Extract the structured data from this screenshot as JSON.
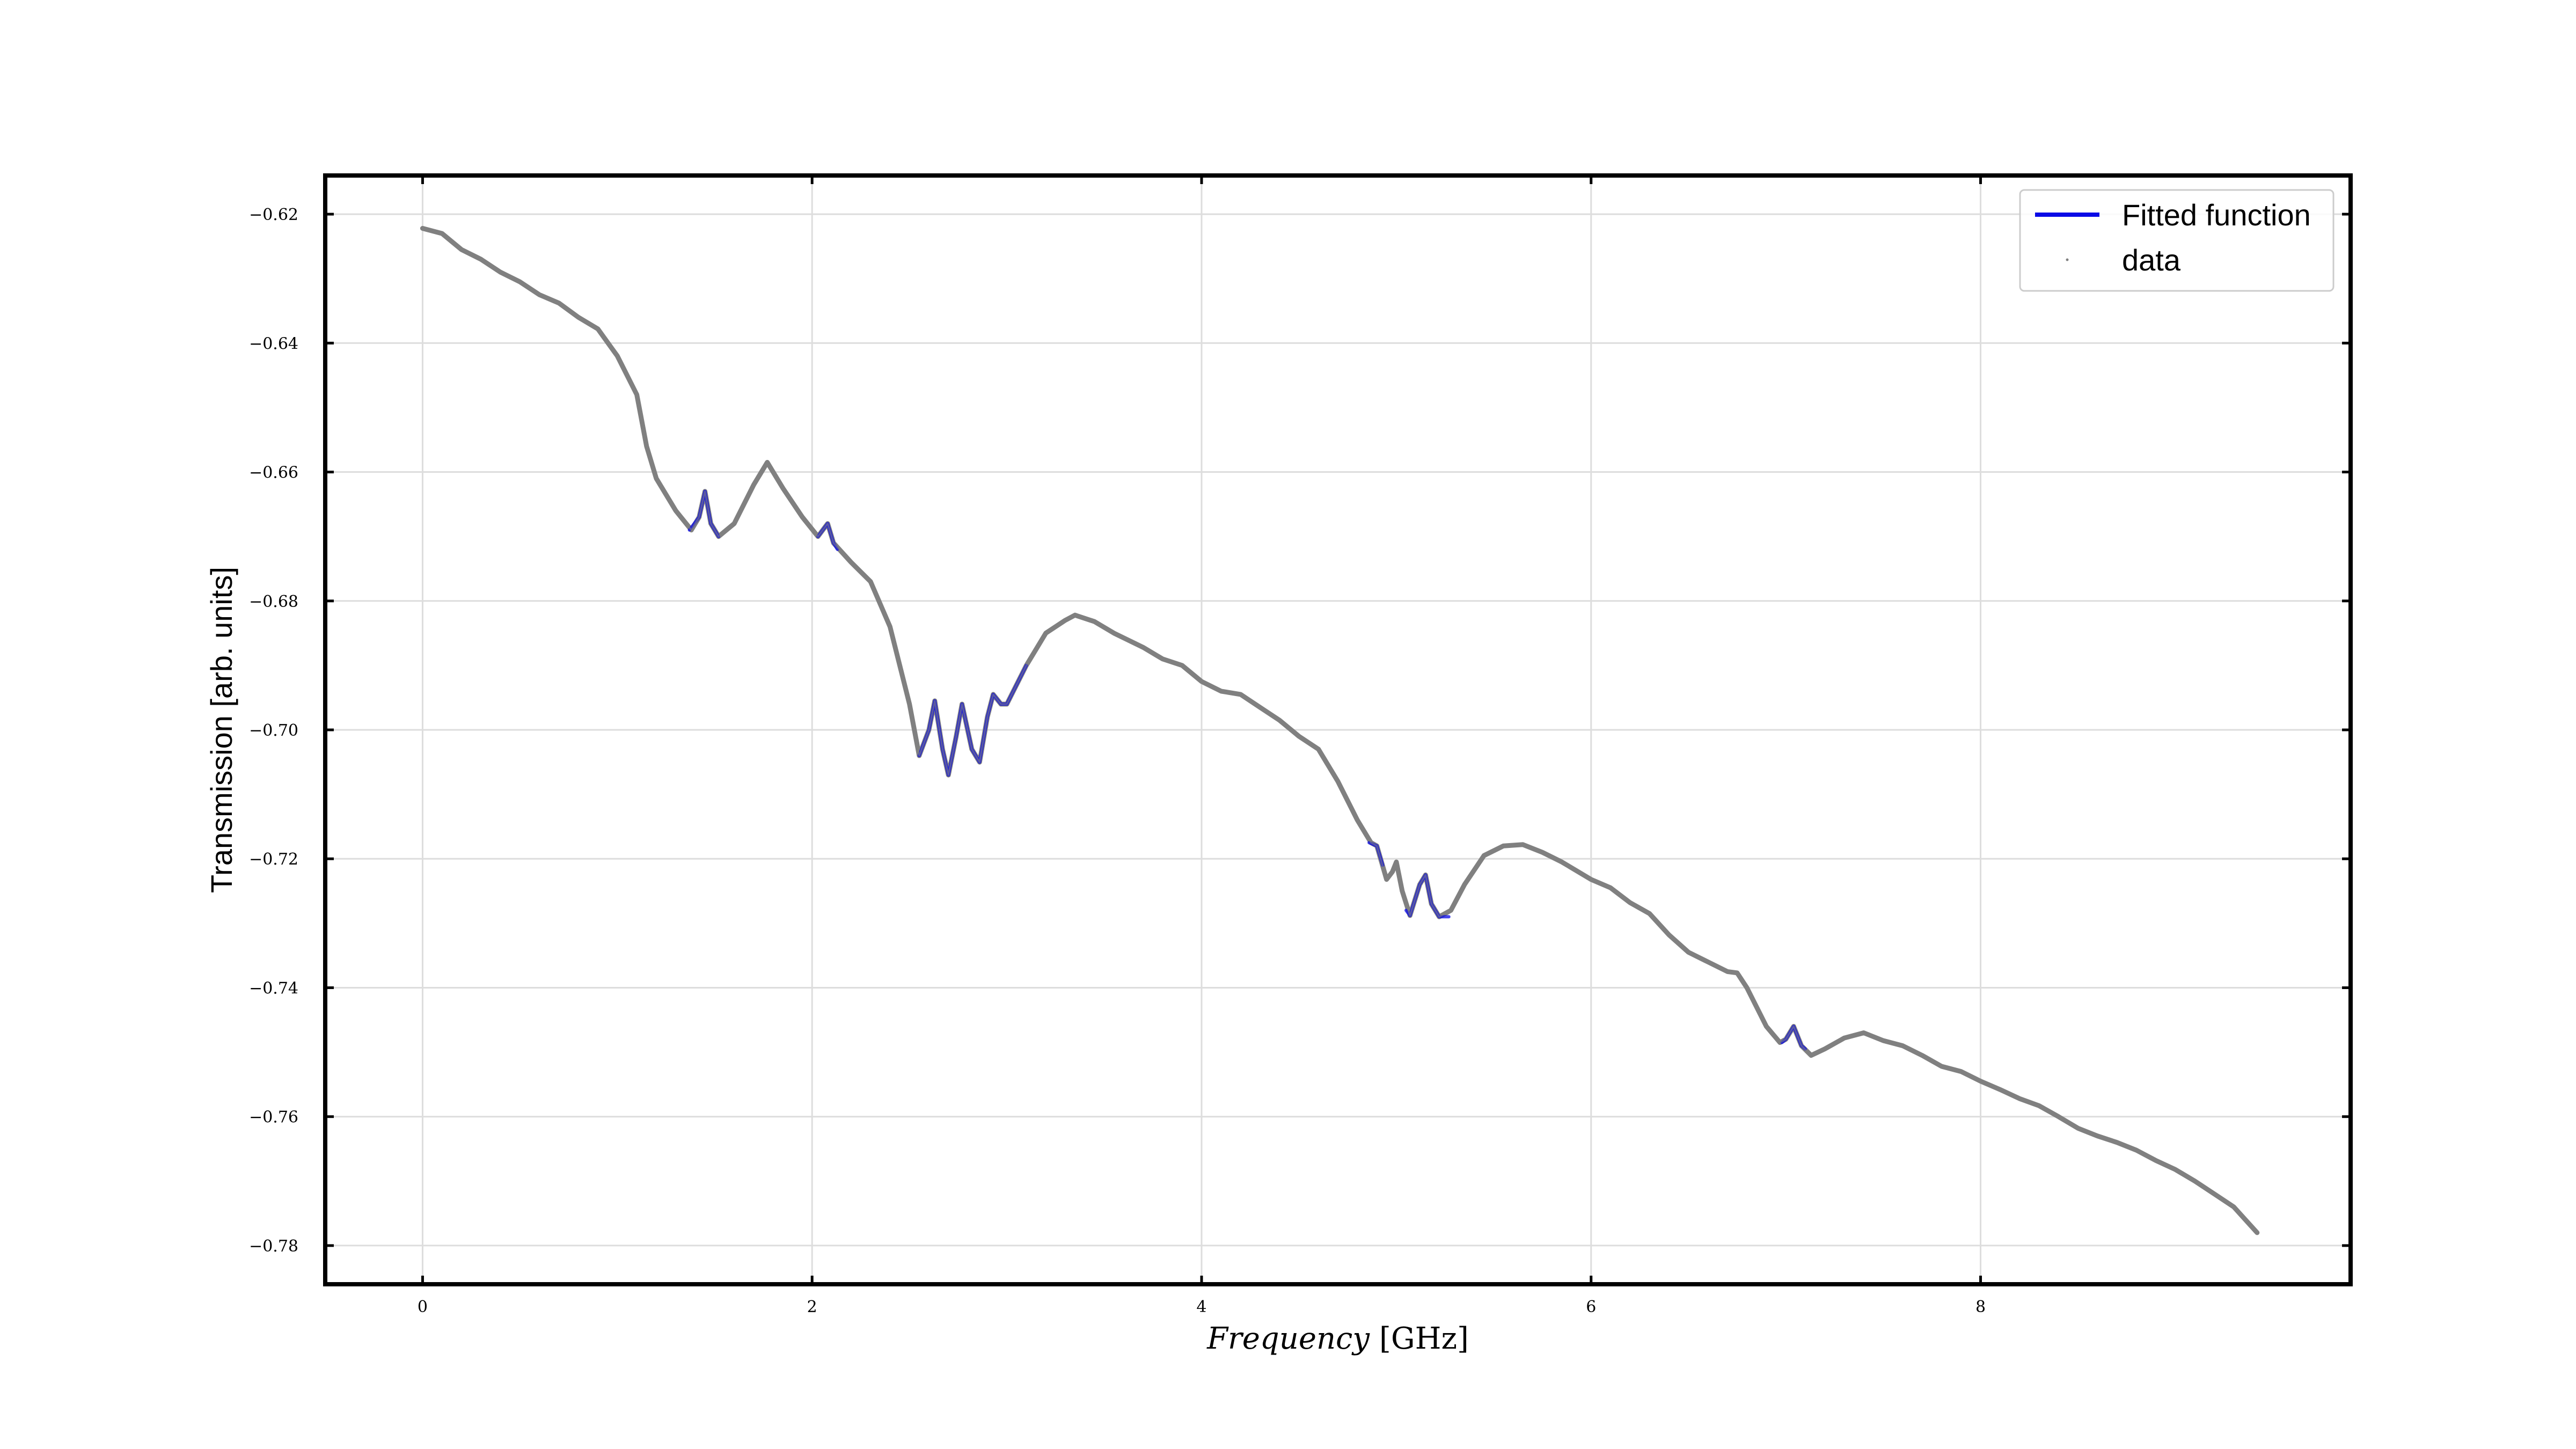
{
  "chart_data": {
    "type": "line",
    "xlabel_italic": "Frequency",
    "xlabel_unit": "[GHz]",
    "ylabel": "Transmission [arb. units]",
    "xlim": [
      -0.5,
      9.9
    ],
    "ylim": [
      -0.786,
      -0.614
    ],
    "xticks": [
      0,
      2,
      4,
      6,
      8
    ],
    "xtick_labels": [
      "0",
      "2",
      "4",
      "6",
      "8"
    ],
    "yticks": [
      -0.62,
      -0.64,
      -0.66,
      -0.68,
      -0.7,
      -0.72,
      -0.74,
      -0.76,
      -0.78
    ],
    "ytick_labels": [
      "−0.62",
      "−0.64",
      "−0.66",
      "−0.68",
      "−0.70",
      "−0.72",
      "−0.74",
      "−0.76",
      "−0.78"
    ],
    "grid": true,
    "legend_position": "top-right",
    "legend": [
      {
        "label": "Fitted function",
        "marker": "line",
        "color": "#0a0ae6"
      },
      {
        "label": "data",
        "marker": "dot",
        "color": "#808080"
      }
    ],
    "series": [
      {
        "name": "data",
        "color": "#808080",
        "points": [
          [
            0.0,
            -0.6222
          ],
          [
            0.1,
            -0.623
          ],
          [
            0.2,
            -0.6255
          ],
          [
            0.3,
            -0.627
          ],
          [
            0.4,
            -0.629
          ],
          [
            0.5,
            -0.6305
          ],
          [
            0.6,
            -0.6325
          ],
          [
            0.7,
            -0.6338
          ],
          [
            0.8,
            -0.636
          ],
          [
            0.9,
            -0.6378
          ],
          [
            1.0,
            -0.642
          ],
          [
            1.1,
            -0.648
          ],
          [
            1.15,
            -0.656
          ],
          [
            1.2,
            -0.661
          ],
          [
            1.3,
            -0.666
          ],
          [
            1.38,
            -0.669
          ],
          [
            1.42,
            -0.667
          ],
          [
            1.45,
            -0.663
          ],
          [
            1.48,
            -0.668
          ],
          [
            1.52,
            -0.67
          ],
          [
            1.6,
            -0.668
          ],
          [
            1.7,
            -0.662
          ],
          [
            1.77,
            -0.6585
          ],
          [
            1.85,
            -0.6625
          ],
          [
            1.95,
            -0.667
          ],
          [
            2.03,
            -0.67
          ],
          [
            2.08,
            -0.668
          ],
          [
            2.11,
            -0.671
          ],
          [
            2.2,
            -0.674
          ],
          [
            2.3,
            -0.677
          ],
          [
            2.4,
            -0.684
          ],
          [
            2.5,
            -0.696
          ],
          [
            2.55,
            -0.704
          ],
          [
            2.6,
            -0.7
          ],
          [
            2.63,
            -0.6955
          ],
          [
            2.67,
            -0.703
          ],
          [
            2.7,
            -0.707
          ],
          [
            2.74,
            -0.701
          ],
          [
            2.77,
            -0.696
          ],
          [
            2.82,
            -0.703
          ],
          [
            2.86,
            -0.705
          ],
          [
            2.9,
            -0.698
          ],
          [
            2.93,
            -0.6945
          ],
          [
            2.97,
            -0.696
          ],
          [
            3.0,
            -0.696
          ],
          [
            3.1,
            -0.69
          ],
          [
            3.2,
            -0.685
          ],
          [
            3.3,
            -0.683
          ],
          [
            3.35,
            -0.6822
          ],
          [
            3.45,
            -0.6832
          ],
          [
            3.55,
            -0.685
          ],
          [
            3.7,
            -0.6872
          ],
          [
            3.8,
            -0.689
          ],
          [
            3.9,
            -0.69
          ],
          [
            4.0,
            -0.6925
          ],
          [
            4.1,
            -0.694
          ],
          [
            4.2,
            -0.6945
          ],
          [
            4.3,
            -0.6965
          ],
          [
            4.4,
            -0.6985
          ],
          [
            4.5,
            -0.701
          ],
          [
            4.6,
            -0.703
          ],
          [
            4.7,
            -0.708
          ],
          [
            4.8,
            -0.714
          ],
          [
            4.87,
            -0.7175
          ],
          [
            4.9,
            -0.718
          ],
          [
            4.95,
            -0.7232
          ],
          [
            4.98,
            -0.722
          ],
          [
            5.0,
            -0.7205
          ],
          [
            5.03,
            -0.725
          ],
          [
            5.07,
            -0.7288
          ],
          [
            5.12,
            -0.724
          ],
          [
            5.15,
            -0.7225
          ],
          [
            5.18,
            -0.727
          ],
          [
            5.22,
            -0.729
          ],
          [
            5.28,
            -0.728
          ],
          [
            5.35,
            -0.724
          ],
          [
            5.45,
            -0.7195
          ],
          [
            5.55,
            -0.718
          ],
          [
            5.65,
            -0.7178
          ],
          [
            5.75,
            -0.719
          ],
          [
            5.85,
            -0.7205
          ],
          [
            6.0,
            -0.7232
          ],
          [
            6.1,
            -0.7245
          ],
          [
            6.2,
            -0.7268
          ],
          [
            6.3,
            -0.7285
          ],
          [
            6.4,
            -0.7318
          ],
          [
            6.5,
            -0.7345
          ],
          [
            6.6,
            -0.736
          ],
          [
            6.7,
            -0.7375
          ],
          [
            6.75,
            -0.7377
          ],
          [
            6.8,
            -0.74
          ],
          [
            6.9,
            -0.746
          ],
          [
            6.97,
            -0.7485
          ],
          [
            7.0,
            -0.748
          ],
          [
            7.04,
            -0.746
          ],
          [
            7.08,
            -0.749
          ],
          [
            7.13,
            -0.7505
          ],
          [
            7.2,
            -0.7495
          ],
          [
            7.3,
            -0.7478
          ],
          [
            7.4,
            -0.747
          ],
          [
            7.5,
            -0.7482
          ],
          [
            7.6,
            -0.749
          ],
          [
            7.7,
            -0.7505
          ],
          [
            7.8,
            -0.7522
          ],
          [
            7.9,
            -0.753
          ],
          [
            8.0,
            -0.7545
          ],
          [
            8.1,
            -0.7558
          ],
          [
            8.2,
            -0.7572
          ],
          [
            8.3,
            -0.7583
          ],
          [
            8.4,
            -0.76
          ],
          [
            8.5,
            -0.7618
          ],
          [
            8.6,
            -0.763
          ],
          [
            8.7,
            -0.764
          ],
          [
            8.8,
            -0.7652
          ],
          [
            8.9,
            -0.7668
          ],
          [
            9.0,
            -0.7682
          ],
          [
            9.1,
            -0.77
          ],
          [
            9.2,
            -0.772
          ],
          [
            9.3,
            -0.774
          ],
          [
            9.42,
            -0.778
          ]
        ]
      },
      {
        "name": "Fitted function",
        "color": "#0a0ae6",
        "segments": [
          [
            [
              1.37,
              -0.669
            ],
            [
              1.42,
              -0.667
            ],
            [
              1.45,
              -0.663
            ],
            [
              1.48,
              -0.668
            ],
            [
              1.52,
              -0.67
            ]
          ],
          [
            [
              2.03,
              -0.67
            ],
            [
              2.08,
              -0.668
            ],
            [
              2.11,
              -0.671
            ],
            [
              2.13,
              -0.672
            ]
          ],
          [
            [
              2.55,
              -0.704
            ],
            [
              2.6,
              -0.7
            ],
            [
              2.63,
              -0.6955
            ],
            [
              2.67,
              -0.703
            ],
            [
              2.7,
              -0.707
            ],
            [
              2.74,
              -0.701
            ],
            [
              2.77,
              -0.696
            ],
            [
              2.82,
              -0.703
            ],
            [
              2.86,
              -0.705
            ],
            [
              2.9,
              -0.698
            ],
            [
              2.93,
              -0.6945
            ],
            [
              2.97,
              -0.696
            ],
            [
              3.0,
              -0.696
            ],
            [
              3.1,
              -0.69
            ]
          ],
          [
            [
              4.86,
              -0.7175
            ],
            [
              4.9,
              -0.718
            ],
            [
              4.93,
              -0.721
            ]
          ],
          [
            [
              5.05,
              -0.728
            ],
            [
              5.07,
              -0.7288
            ],
            [
              5.12,
              -0.724
            ],
            [
              5.15,
              -0.7225
            ],
            [
              5.18,
              -0.727
            ],
            [
              5.22,
              -0.729
            ],
            [
              5.27,
              -0.729
            ]
          ],
          [
            [
              6.98,
              -0.7485
            ],
            [
              7.0,
              -0.748
            ],
            [
              7.04,
              -0.746
            ],
            [
              7.08,
              -0.749
            ],
            [
              7.1,
              -0.7495
            ]
          ]
        ]
      }
    ]
  }
}
